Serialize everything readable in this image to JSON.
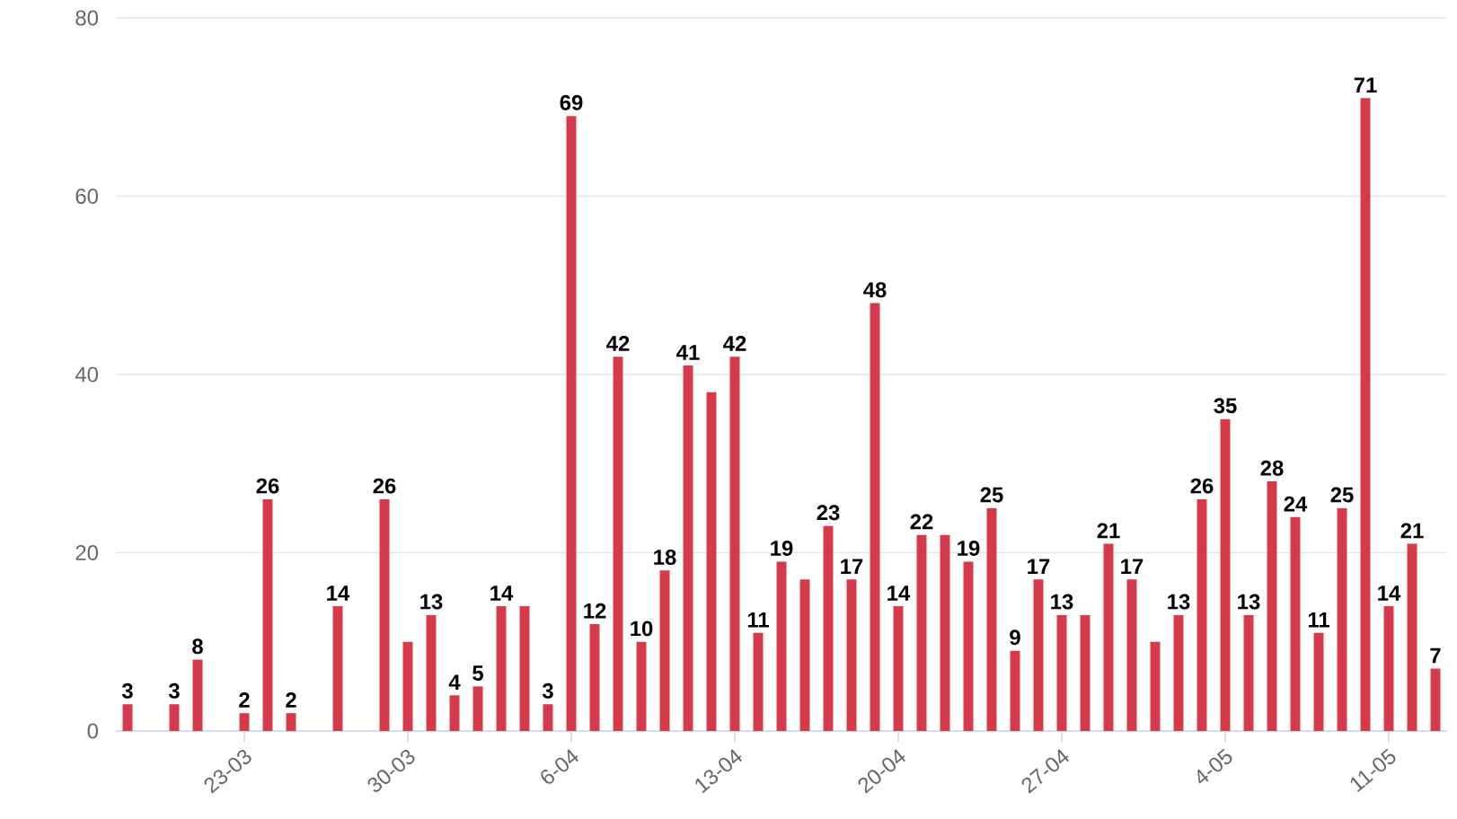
{
  "chart_data": {
    "type": "bar",
    "categories": [
      null,
      null,
      null,
      null,
      null,
      "23-03",
      null,
      null,
      null,
      null,
      null,
      null,
      "30-03",
      null,
      null,
      null,
      null,
      null,
      null,
      "6-04",
      null,
      null,
      null,
      null,
      null,
      null,
      "13-04",
      null,
      null,
      null,
      null,
      null,
      null,
      "20-04",
      null,
      null,
      null,
      null,
      null,
      null,
      "27-04",
      null,
      null,
      null,
      null,
      null,
      null,
      "4-05",
      null,
      null,
      null,
      null,
      null,
      null,
      "11-05",
      null,
      null
    ],
    "values": [
      3,
      null,
      3,
      8,
      null,
      2,
      26,
      2,
      null,
      14,
      null,
      26,
      10,
      13,
      4,
      5,
      14,
      14,
      3,
      69,
      12,
      42,
      10,
      18,
      41,
      38,
      42,
      11,
      19,
      17,
      23,
      17,
      48,
      14,
      22,
      22,
      19,
      25,
      9,
      17,
      13,
      13,
      21,
      17,
      10,
      13,
      26,
      35,
      13,
      28,
      24,
      11,
      25,
      71,
      14,
      21,
      7
    ],
    "value_labels": [
      "3",
      null,
      "3",
      "8",
      null,
      "2",
      "26",
      "2",
      null,
      "14",
      null,
      "26",
      null,
      "13",
      "4",
      "5",
      "14",
      null,
      "3",
      "69",
      "12",
      "42",
      "10",
      "18",
      "41",
      null,
      "42",
      "11",
      "19",
      null,
      "23",
      "17",
      "48",
      "14",
      "22",
      null,
      "19",
      "25",
      "9",
      "17",
      "13",
      null,
      "21",
      "17",
      null,
      "13",
      "26",
      "35",
      "13",
      "28",
      "24",
      "11",
      "25",
      "71",
      "14",
      "21",
      "7"
    ],
    "color": "#d63a4a",
    "ylim": [
      0,
      80
    ],
    "yticks": [
      0,
      20,
      40,
      60,
      80
    ],
    "grid": "y"
  }
}
